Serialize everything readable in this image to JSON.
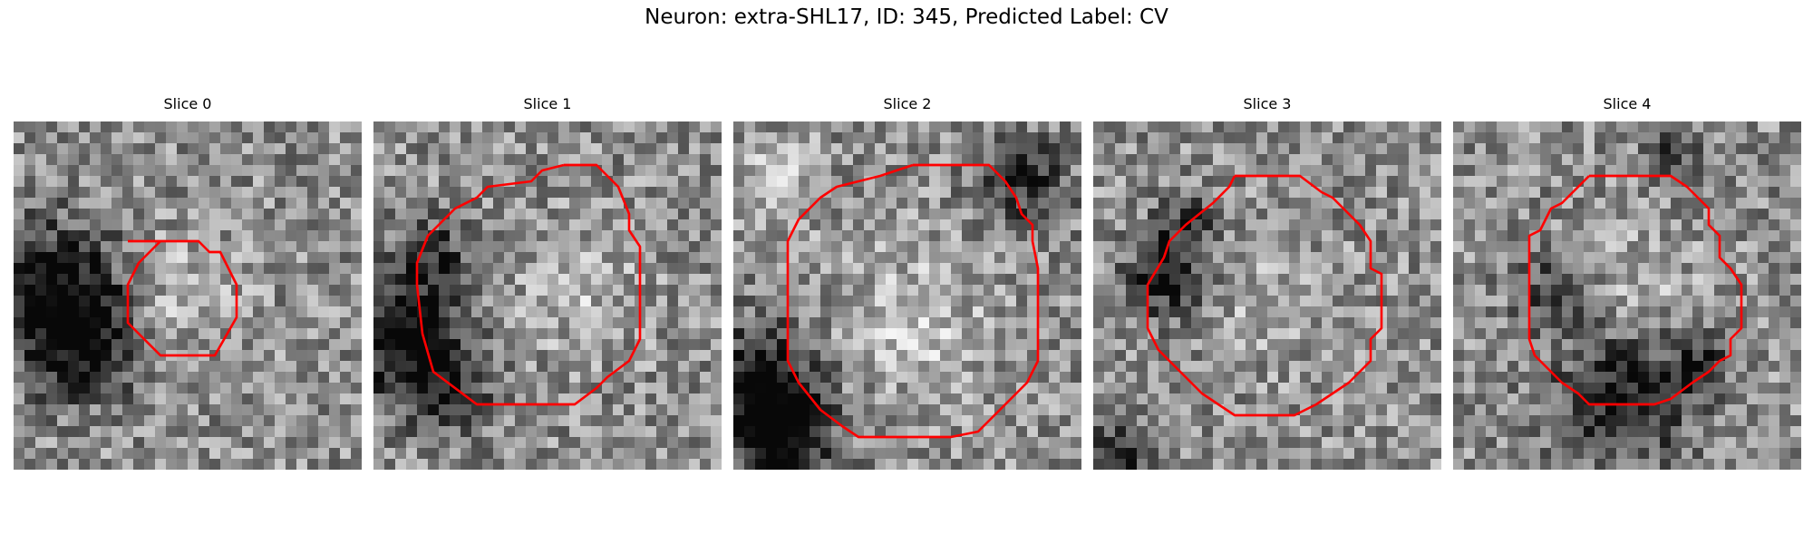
{
  "figure": {
    "title": "Neuron: extra-SHL17, ID: 345, Predicted Label: CV",
    "contour_color": "#ff0000",
    "colormap": "grayscale",
    "grid_size": 32
  },
  "slices": [
    {
      "label": "Slice 0",
      "seed": 11,
      "contour": [
        [
          10.5,
          11.0
        ],
        [
          17.0,
          11.0
        ],
        [
          18.0,
          12.0
        ],
        [
          19.0,
          12.0
        ],
        [
          20.0,
          14.0
        ],
        [
          20.5,
          15.0
        ],
        [
          20.5,
          18.0
        ],
        [
          18.5,
          21.5
        ],
        [
          13.5,
          21.5
        ],
        [
          11.5,
          19.5
        ],
        [
          10.5,
          18.5
        ],
        [
          10.5,
          15.0
        ],
        [
          11.5,
          13.0
        ],
        [
          12.5,
          12.0
        ],
        [
          13.5,
          11.0
        ]
      ],
      "dark": [
        [
          3,
          15,
          4.5,
          0.55
        ],
        [
          6,
          20,
          3.5,
          0.45
        ]
      ],
      "bright": [
        [
          15,
          15,
          3.5,
          0.18
        ]
      ]
    },
    {
      "label": "Slice 1",
      "seed": 23,
      "contour": [
        [
          17.5,
          4.0
        ],
        [
          20.5,
          4.0
        ],
        [
          22.5,
          6.0
        ],
        [
          23.5,
          8.5
        ],
        [
          23.5,
          10.0
        ],
        [
          24.5,
          11.5
        ],
        [
          24.5,
          20.0
        ],
        [
          23.5,
          22.0
        ],
        [
          21.5,
          23.5
        ],
        [
          20.5,
          24.5
        ],
        [
          18.5,
          26.0
        ],
        [
          9.5,
          26.0
        ],
        [
          5.5,
          23.0
        ],
        [
          4.5,
          19.5
        ],
        [
          4.0,
          15.0
        ],
        [
          4.0,
          13.0
        ],
        [
          5.0,
          10.5
        ],
        [
          7.5,
          8.0
        ],
        [
          9.5,
          7.0
        ],
        [
          10.5,
          6.0
        ],
        [
          14.5,
          5.5
        ],
        [
          15.5,
          4.5
        ],
        [
          17.5,
          4.0
        ]
      ],
      "dark": [
        [
          2,
          19,
          3.5,
          0.6
        ],
        [
          6,
          24,
          3.0,
          0.4
        ],
        [
          5,
          12,
          2.5,
          0.35
        ]
      ],
      "bright": [
        [
          18,
          15,
          4,
          0.15
        ]
      ]
    },
    {
      "label": "Slice 2",
      "seed": 37,
      "contour": [
        [
          16.5,
          4.0
        ],
        [
          23.5,
          4.0
        ],
        [
          25.0,
          5.5
        ],
        [
          26.0,
          7.0
        ],
        [
          26.5,
          8.5
        ],
        [
          27.5,
          9.5
        ],
        [
          27.5,
          11.0
        ],
        [
          28.0,
          13.5
        ],
        [
          28.0,
          22.0
        ],
        [
          27.0,
          24.0
        ],
        [
          25.5,
          25.5
        ],
        [
          24.5,
          26.5
        ],
        [
          22.5,
          28.5
        ],
        [
          20.0,
          29.0
        ],
        [
          11.5,
          29.0
        ],
        [
          10.0,
          28.0
        ],
        [
          8.0,
          26.5
        ],
        [
          6.0,
          24.0
        ],
        [
          5.0,
          22.0
        ],
        [
          5.0,
          11.0
        ],
        [
          6.0,
          9.0
        ],
        [
          8.0,
          7.0
        ],
        [
          9.5,
          6.0
        ],
        [
          11.5,
          5.5
        ],
        [
          13.5,
          5.0
        ],
        [
          15.0,
          4.5
        ],
        [
          16.5,
          4.0
        ]
      ],
      "dark": [
        [
          2,
          24,
          4.0,
          0.6
        ],
        [
          4,
          29,
          3.0,
          0.5
        ],
        [
          26,
          5,
          3.0,
          0.4
        ]
      ],
      "bright": [
        [
          16,
          18,
          5,
          0.2
        ],
        [
          3,
          5,
          3,
          0.18
        ]
      ]
    },
    {
      "label": "Slice 3",
      "seed": 53,
      "contour": [
        [
          13.0,
          5.0
        ],
        [
          19.0,
          5.0
        ],
        [
          21.0,
          6.5
        ],
        [
          22.0,
          7.0
        ],
        [
          24.5,
          9.5
        ],
        [
          25.5,
          11.0
        ],
        [
          25.5,
          13.5
        ],
        [
          26.5,
          14.0
        ],
        [
          26.5,
          19.0
        ],
        [
          25.5,
          20.0
        ],
        [
          25.5,
          22.0
        ],
        [
          23.5,
          24.0
        ],
        [
          22.0,
          25.0
        ],
        [
          20.5,
          26.0
        ],
        [
          18.5,
          27.0
        ],
        [
          13.0,
          27.0
        ],
        [
          10.0,
          25.0
        ],
        [
          8.0,
          23.0
        ],
        [
          6.0,
          21.0
        ],
        [
          5.0,
          19.0
        ],
        [
          5.0,
          15.0
        ],
        [
          6.5,
          12.5
        ],
        [
          7.0,
          11.0
        ],
        [
          8.5,
          9.5
        ],
        [
          11.0,
          7.5
        ],
        [
          12.5,
          6.0
        ],
        [
          13.0,
          5.0
        ]
      ],
      "dark": [
        [
          6,
          14,
          2.5,
          0.45
        ],
        [
          8,
          9,
          2.0,
          0.35
        ],
        [
          2,
          30,
          2.0,
          0.4
        ]
      ],
      "bright": [
        [
          16,
          16,
          4,
          0.12
        ]
      ]
    },
    {
      "label": "Slice 4",
      "seed": 71,
      "contour": [
        [
          12.5,
          5.0
        ],
        [
          20.0,
          5.0
        ],
        [
          21.5,
          6.0
        ],
        [
          22.5,
          7.0
        ],
        [
          23.5,
          8.0
        ],
        [
          23.5,
          9.5
        ],
        [
          24.5,
          10.5
        ],
        [
          24.5,
          12.5
        ],
        [
          25.5,
          13.5
        ],
        [
          26.5,
          15.0
        ],
        [
          26.5,
          19.0
        ],
        [
          25.5,
          20.0
        ],
        [
          25.5,
          21.5
        ],
        [
          24.5,
          22.0
        ],
        [
          23.5,
          23.0
        ],
        [
          22.0,
          24.0
        ],
        [
          20.0,
          25.5
        ],
        [
          18.5,
          26.0
        ],
        [
          12.5,
          26.0
        ],
        [
          11.5,
          25.0
        ],
        [
          10.0,
          24.0
        ],
        [
          9.0,
          23.0
        ],
        [
          7.5,
          21.5
        ],
        [
          7.0,
          20.0
        ],
        [
          7.0,
          10.5
        ],
        [
          8.0,
          10.0
        ],
        [
          9.0,
          8.0
        ],
        [
          10.0,
          7.5
        ],
        [
          11.5,
          6.0
        ],
        [
          12.5,
          5.0
        ]
      ],
      "dark": [
        [
          15,
          25,
          4.5,
          0.45
        ],
        [
          9,
          15,
          2.5,
          0.35
        ],
        [
          22,
          21,
          2.0,
          0.35
        ],
        [
          20,
          2,
          2.0,
          0.3
        ]
      ],
      "bright": [
        [
          16,
          15,
          4,
          0.15
        ]
      ]
    }
  ]
}
